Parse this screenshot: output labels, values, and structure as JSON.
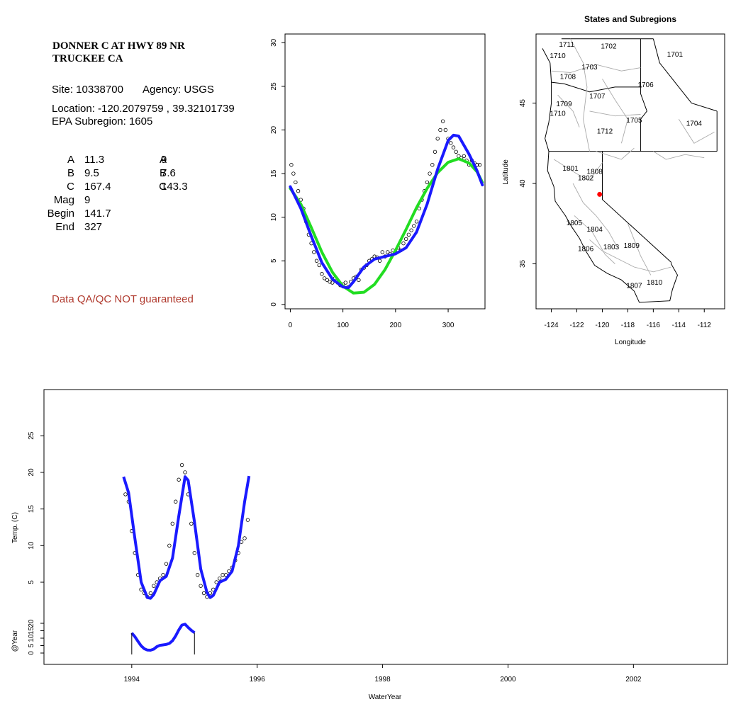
{
  "site_name": "DONNER C AT HWY 89 NR\nTRUCKEE CA",
  "site_line": "Site: 10338700",
  "agency_line": "Agency: USGS",
  "location_line": "Location: -120.2079759 , 39.32101739",
  "subregion_line": "EPA Subregion: 1605",
  "params": {
    "left": [
      {
        "label": "A",
        "value": "11.3"
      },
      {
        "label": "B",
        "value": "9.5"
      },
      {
        "label": "C",
        "value": "167.4"
      },
      {
        "label": "Mag",
        "value": "9"
      },
      {
        "label": "Begin",
        "value": "141.7"
      },
      {
        "label": "End",
        "value": "327"
      }
    ],
    "right": [
      {
        "label": "A",
        "value": "9"
      },
      {
        "label": "B",
        "value": "7.6"
      },
      {
        "label": "C",
        "value": "143.3"
      }
    ]
  },
  "qa_note": "Data QA/QC NOT guaranteed",
  "colors": {
    "obs": "#000000",
    "fit_blue": "#1a1aff",
    "fit_green": "#22dd22",
    "site_marker": "#ff0000",
    "qa_text": "#b03a2e"
  },
  "chart_data": [
    {
      "type": "scatter",
      "id": "seasonal",
      "title": "",
      "xlabel": "",
      "ylabel": "",
      "xlim": [
        -10,
        370
      ],
      "ylim": [
        -0.5,
        31
      ],
      "xticks": [
        "0",
        "100",
        "200",
        "300"
      ],
      "yticks": [
        "0",
        "5",
        "10",
        "15",
        "20",
        "25",
        "30"
      ],
      "series": [
        {
          "kind": "points",
          "desc": "daily observations (approx.)",
          "x": [
            2,
            6,
            10,
            15,
            20,
            25,
            30,
            35,
            40,
            45,
            50,
            55,
            60,
            65,
            70,
            75,
            80,
            85,
            90,
            95,
            100,
            105,
            110,
            115,
            120,
            125,
            130,
            135,
            140,
            145,
            150,
            155,
            160,
            165,
            170,
            175,
            180,
            185,
            190,
            195,
            200,
            205,
            210,
            215,
            220,
            225,
            230,
            235,
            240,
            245,
            250,
            255,
            260,
            265,
            270,
            275,
            280,
            285,
            290,
            295,
            300,
            305,
            310,
            315,
            320,
            325,
            330,
            335,
            340,
            345,
            350,
            355,
            360
          ],
          "y": [
            16,
            15,
            14,
            13,
            12,
            11,
            9.5,
            8,
            7,
            6,
            5,
            4.5,
            3.5,
            3,
            2.8,
            2.6,
            2.5,
            3,
            2.5,
            2.2,
            2.3,
            2.5,
            2,
            2.6,
            3,
            3.2,
            2.8,
            4,
            4.2,
            4.5,
            5,
            5.2,
            5.5,
            5.4,
            5,
            6,
            5.5,
            6,
            5.8,
            6.2,
            6,
            6.5,
            6.2,
            7,
            7.5,
            8,
            8.5,
            9,
            9.5,
            11,
            12,
            13,
            14,
            15,
            16,
            17.5,
            19,
            20,
            21,
            20,
            19,
            18.5,
            18,
            17.5,
            17,
            16.8,
            17,
            16.5,
            16,
            16.5,
            16.2,
            16,
            16
          ]
        },
        {
          "kind": "line",
          "name": "",
          "desc": "green fit",
          "x": [
            0,
            20,
            40,
            60,
            80,
            100,
            120,
            140,
            160,
            180,
            200,
            220,
            240,
            260,
            280,
            300,
            320,
            340,
            355,
            365
          ],
          "y": [
            13.3,
            11.5,
            8.8,
            6.0,
            3.7,
            2.1,
            1.3,
            1.4,
            2.3,
            4.0,
            6.2,
            8.6,
            11.1,
            13.3,
            15.1,
            16.3,
            16.7,
            16.2,
            15.2,
            14.0
          ]
        },
        {
          "kind": "line",
          "name": "",
          "desc": "blue fit",
          "x": [
            0,
            20,
            40,
            60,
            80,
            100,
            110,
            120,
            140,
            160,
            180,
            200,
            220,
            240,
            260,
            280,
            300,
            310,
            320,
            340,
            355,
            365
          ],
          "y": [
            13.5,
            11.0,
            7.8,
            4.8,
            2.9,
            2.0,
            1.9,
            2.6,
            4.3,
            5.2,
            5.5,
            5.8,
            6.5,
            8.3,
            11.5,
            15.5,
            18.8,
            19.4,
            19.3,
            17.2,
            15.3,
            13.7
          ]
        }
      ]
    },
    {
      "type": "map",
      "id": "regions",
      "title": "States and Subregions",
      "xlabel": "Longitude",
      "ylabel": "Latitude",
      "xlim": [
        -125.2,
        -110.4
      ],
      "ylim": [
        32.2,
        49.3
      ],
      "xticks": [
        -124,
        -122,
        -120,
        -118,
        -116,
        -114,
        -112
      ],
      "yticks": [
        35,
        40,
        45
      ],
      "site": {
        "lon": -120.2079759,
        "lat": 39.32101739
      },
      "region_labels": [
        {
          "text": "1711",
          "lon": -122.8,
          "lat": 48.5
        },
        {
          "text": "1702",
          "lon": -119.5,
          "lat": 48.4
        },
        {
          "text": "1701",
          "lon": -114.3,
          "lat": 47.9
        },
        {
          "text": "1710",
          "lon": -123.5,
          "lat": 47.8
        },
        {
          "text": "1703",
          "lon": -121.0,
          "lat": 47.1
        },
        {
          "text": "1708",
          "lon": -122.7,
          "lat": 46.5
        },
        {
          "text": "1706",
          "lon": -116.6,
          "lat": 46.0
        },
        {
          "text": "1707",
          "lon": -120.4,
          "lat": 45.3
        },
        {
          "text": "1709",
          "lon": -123.0,
          "lat": 44.8
        },
        {
          "text": "1710",
          "lon": -123.5,
          "lat": 44.2
        },
        {
          "text": "1705",
          "lon": -117.5,
          "lat": 43.8
        },
        {
          "text": "1704",
          "lon": -112.8,
          "lat": 43.6
        },
        {
          "text": "1712",
          "lon": -119.8,
          "lat": 43.1
        },
        {
          "text": "1801",
          "lon": -122.5,
          "lat": 40.8
        },
        {
          "text": "1808",
          "lon": -120.6,
          "lat": 40.6
        },
        {
          "text": "1802",
          "lon": -121.3,
          "lat": 40.2
        },
        {
          "text": "1805",
          "lon": -122.2,
          "lat": 37.4
        },
        {
          "text": "1804",
          "lon": -120.6,
          "lat": 37.0
        },
        {
          "text": "1806",
          "lon": -121.3,
          "lat": 35.8
        },
        {
          "text": "1803",
          "lon": -119.3,
          "lat": 35.9
        },
        {
          "text": "1809",
          "lon": -117.7,
          "lat": 36.0
        },
        {
          "text": "1810",
          "lon": -115.9,
          "lat": 33.7
        },
        {
          "text": "1807",
          "lon": -117.5,
          "lat": 33.5
        }
      ]
    },
    {
      "type": "scatter",
      "id": "timeseries",
      "title": "",
      "xlabel": "WaterYear",
      "ylabel": "Temp. (C)",
      "ylabel2": "@Year",
      "xlim": [
        1992.6,
        2003.5
      ],
      "xticks": [
        "1994",
        "1996",
        "1998",
        "2000",
        "2002"
      ],
      "ylim": [
        -8,
        29
      ],
      "yticks": [
        "5",
        "10",
        "15",
        "20",
        "25"
      ],
      "yticks2": [
        "0",
        "5",
        "10",
        "15",
        "20"
      ],
      "series": [
        {
          "kind": "points",
          "desc": "daily observations (approx.)",
          "x": [
            1993.9,
            1993.95,
            1994.0,
            1994.05,
            1994.1,
            1994.15,
            1994.2,
            1994.25,
            1994.3,
            1994.35,
            1994.4,
            1994.45,
            1994.5,
            1994.55,
            1994.6,
            1994.65,
            1994.7,
            1994.75,
            1994.8,
            1994.85,
            1994.9,
            1994.95,
            1995.0,
            1995.05,
            1995.1,
            1995.15,
            1995.2,
            1995.25,
            1995.3,
            1995.35,
            1995.4,
            1995.45,
            1995.5,
            1995.55,
            1995.6,
            1995.65,
            1995.7,
            1995.75,
            1995.8,
            1995.85
          ],
          "y": [
            17,
            16,
            12,
            9,
            6,
            4,
            3.5,
            3,
            3.5,
            4.5,
            5,
            5.5,
            6,
            7.5,
            10,
            13,
            16,
            19,
            21,
            20,
            17,
            13,
            9,
            6,
            4.5,
            3.5,
            3,
            3.5,
            4,
            5,
            5.5,
            6,
            6,
            6.5,
            7,
            8,
            9,
            10.5,
            11,
            13.5
          ]
        },
        {
          "kind": "line",
          "name": "",
          "desc": "blue fit",
          "x": [
            1993.87,
            1993.95,
            1994.05,
            1994.15,
            1994.25,
            1994.3,
            1994.35,
            1994.45,
            1994.55,
            1994.65,
            1994.75,
            1994.85,
            1994.9,
            1995.0,
            1995.1,
            1995.2,
            1995.25,
            1995.3,
            1995.4,
            1995.5,
            1995.6,
            1995.7,
            1995.8,
            1995.87
          ],
          "y": [
            19.4,
            17.2,
            11.0,
            5.0,
            2.9,
            2.8,
            3.3,
            5.2,
            5.8,
            8.3,
            14.0,
            19.4,
            18.9,
            13.2,
            6.8,
            3.6,
            2.9,
            3.2,
            5.0,
            5.4,
            6.5,
            10.0,
            16.0,
            19.5
          ]
        },
        {
          "kind": "line",
          "name": "",
          "desc": "@Year inset blue curve",
          "x": [
            1994.0,
            1994.05,
            1994.1,
            1994.15,
            1994.2,
            1994.25,
            1994.3,
            1994.35,
            1994.4,
            1994.45,
            1994.5,
            1994.55,
            1994.6,
            1994.65,
            1994.7,
            1994.75,
            1994.8,
            1994.85,
            1994.9,
            1994.95,
            1995.0
          ],
          "y": [
            13.5,
            11,
            7.8,
            4.8,
            2.9,
            2.0,
            1.9,
            2.6,
            4.3,
            5.2,
            5.5,
            5.8,
            6.5,
            8.3,
            11.5,
            15.5,
            18.8,
            19.4,
            17.2,
            15.3,
            13.7
          ]
        }
      ]
    }
  ]
}
